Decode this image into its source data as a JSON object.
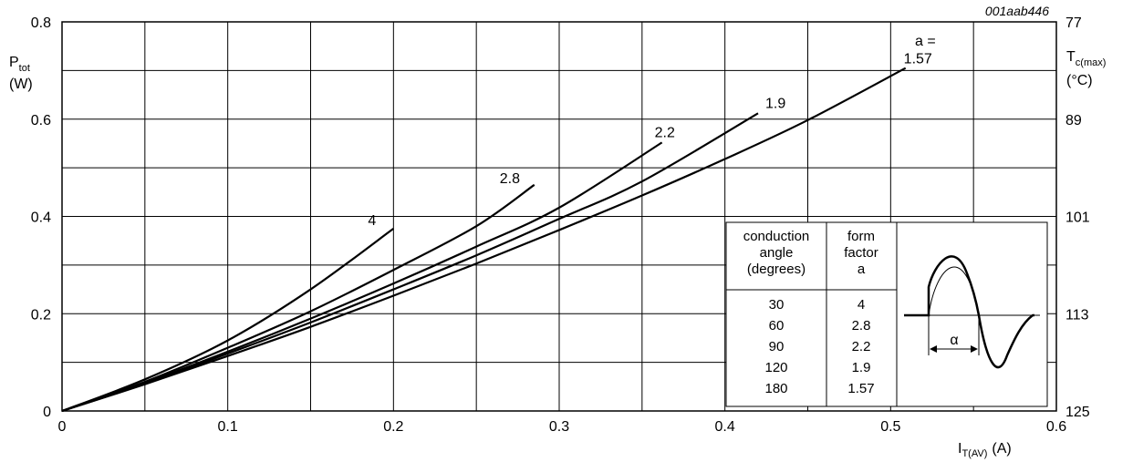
{
  "figure_code": "001aab446",
  "chart_data": {
    "type": "line",
    "xlabel": {
      "main": "I",
      "sub": "T(AV)",
      "unit": "(A)"
    },
    "ylabel": {
      "main": "P",
      "sub": "tot",
      "unit": "(W)"
    },
    "y2label": {
      "main": "T",
      "sub": "c(max)",
      "unit": "(°C)"
    },
    "xlim": [
      0,
      0.6
    ],
    "ylim": [
      0,
      0.8
    ],
    "x_ticks": [
      0,
      0.1,
      0.2,
      0.3,
      0.4,
      0.5,
      0.6
    ],
    "x_tick_labels": [
      "0",
      "0.1",
      "0.2",
      "0.3",
      "0.4",
      "0.5",
      "0.6"
    ],
    "y_ticks": [
      0,
      0.2,
      0.4,
      0.6,
      0.8
    ],
    "y_tick_labels": [
      "0",
      "0.2",
      "0.4",
      "0.6",
      "0.8"
    ],
    "y2_ticks": [
      0,
      0.2,
      0.4,
      0.6,
      0.8
    ],
    "y2_tick_labels": [
      "125",
      "113",
      "101",
      "89",
      "77"
    ],
    "grid": true,
    "grid_x_step": 0.05,
    "grid_y_step": 0.1,
    "curve_label_prefix": "a =",
    "series": [
      {
        "name": "4",
        "points": [
          [
            0,
            0
          ],
          [
            0.05,
            0.065
          ],
          [
            0.1,
            0.145
          ],
          [
            0.15,
            0.25
          ],
          [
            0.2,
            0.375
          ]
        ]
      },
      {
        "name": "2.8",
        "points": [
          [
            0,
            0
          ],
          [
            0.05,
            0.06
          ],
          [
            0.1,
            0.13
          ],
          [
            0.15,
            0.205
          ],
          [
            0.2,
            0.29
          ],
          [
            0.25,
            0.38
          ],
          [
            0.285,
            0.465
          ]
        ]
      },
      {
        "name": "2.2",
        "points": [
          [
            0,
            0
          ],
          [
            0.05,
            0.058
          ],
          [
            0.1,
            0.122
          ],
          [
            0.15,
            0.19
          ],
          [
            0.2,
            0.262
          ],
          [
            0.25,
            0.338
          ],
          [
            0.3,
            0.418
          ],
          [
            0.362,
            0.552
          ]
        ]
      },
      {
        "name": "1.9",
        "points": [
          [
            0,
            0
          ],
          [
            0.05,
            0.056
          ],
          [
            0.1,
            0.118
          ],
          [
            0.15,
            0.182
          ],
          [
            0.2,
            0.25
          ],
          [
            0.25,
            0.32
          ],
          [
            0.3,
            0.395
          ],
          [
            0.35,
            0.472
          ],
          [
            0.42,
            0.612
          ]
        ]
      },
      {
        "name": "1.57",
        "points": [
          [
            0,
            0
          ],
          [
            0.05,
            0.055
          ],
          [
            0.1,
            0.113
          ],
          [
            0.15,
            0.173
          ],
          [
            0.2,
            0.237
          ],
          [
            0.25,
            0.303
          ],
          [
            0.3,
            0.372
          ],
          [
            0.35,
            0.443
          ],
          [
            0.4,
            0.518
          ],
          [
            0.45,
            0.598
          ],
          [
            0.509,
            0.705
          ]
        ]
      }
    ],
    "inset_table": {
      "headers": [
        [
          "conduction",
          "angle",
          "(degrees)"
        ],
        [
          "form",
          "factor",
          "a"
        ]
      ],
      "rows": [
        [
          "30",
          "4"
        ],
        [
          "60",
          "2.8"
        ],
        [
          "90",
          "2.2"
        ],
        [
          "120",
          "1.9"
        ],
        [
          "180",
          "1.57"
        ]
      ],
      "waveform_symbol": "α"
    }
  }
}
